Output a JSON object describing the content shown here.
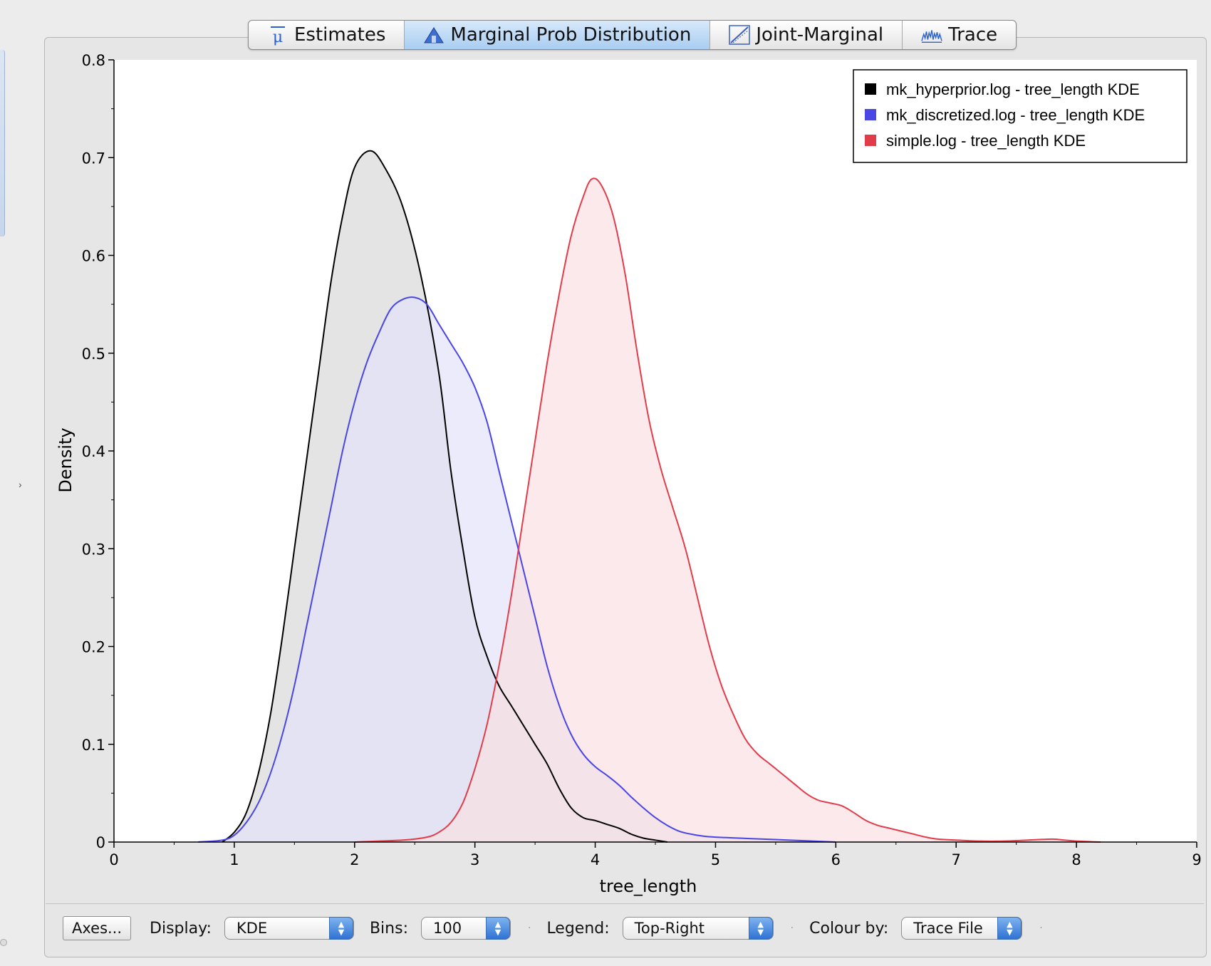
{
  "tabs": [
    {
      "label": "Estimates",
      "icon": "mu-icon",
      "active": false
    },
    {
      "label": "Marginal Prob Distribution",
      "icon": "distribution-icon",
      "active": true
    },
    {
      "label": "Joint-Marginal",
      "icon": "joint-marginal-icon",
      "active": false
    },
    {
      "label": "Trace",
      "icon": "trace-icon",
      "active": false
    }
  ],
  "controls": {
    "axes_button": "Axes...",
    "display_label": "Display:",
    "display_value": "KDE",
    "bins_label": "Bins:",
    "bins_value": "100",
    "legend_label": "Legend:",
    "legend_value": "Top-Right",
    "colour_label": "Colour by:",
    "colour_value": "Trace File"
  },
  "colors": {
    "accent": "#3c78d8",
    "series": [
      "#000000",
      "#4a46e6",
      "#e23c4a"
    ]
  },
  "chart_data": {
    "type": "area",
    "title": "",
    "xlabel": "tree_length",
    "ylabel": "Density",
    "xlim": [
      0,
      9
    ],
    "ylim": [
      0,
      0.8
    ],
    "xticks": [
      "0",
      "1",
      "2",
      "3",
      "4",
      "5",
      "6",
      "7",
      "8",
      "9"
    ],
    "yticks": [
      "0",
      "0.1",
      "0.2",
      "0.3",
      "0.4",
      "0.5",
      "0.6",
      "0.7",
      "0.8"
    ],
    "legend_position": "top-right",
    "grid": false,
    "series": [
      {
        "name": "mk_hyperprior.log - tree_length KDE",
        "color": "#000000",
        "fill": "#d9d9d9",
        "points": [
          [
            0.9,
            0.0
          ],
          [
            1.0,
            0.01
          ],
          [
            1.1,
            0.03
          ],
          [
            1.2,
            0.07
          ],
          [
            1.3,
            0.13
          ],
          [
            1.4,
            0.21
          ],
          [
            1.5,
            0.3
          ],
          [
            1.6,
            0.39
          ],
          [
            1.7,
            0.48
          ],
          [
            1.8,
            0.57
          ],
          [
            1.9,
            0.64
          ],
          [
            2.0,
            0.69
          ],
          [
            2.13,
            0.707
          ],
          [
            2.25,
            0.69
          ],
          [
            2.4,
            0.65
          ],
          [
            2.55,
            0.58
          ],
          [
            2.7,
            0.48
          ],
          [
            2.8,
            0.38
          ],
          [
            2.9,
            0.3
          ],
          [
            3.0,
            0.23
          ],
          [
            3.1,
            0.19
          ],
          [
            3.2,
            0.16
          ],
          [
            3.3,
            0.14
          ],
          [
            3.4,
            0.12
          ],
          [
            3.5,
            0.1
          ],
          [
            3.6,
            0.08
          ],
          [
            3.7,
            0.055
          ],
          [
            3.8,
            0.035
          ],
          [
            3.9,
            0.025
          ],
          [
            4.0,
            0.022
          ],
          [
            4.1,
            0.018
          ],
          [
            4.2,
            0.014
          ],
          [
            4.3,
            0.008
          ],
          [
            4.4,
            0.004
          ],
          [
            4.5,
            0.002
          ],
          [
            4.6,
            0.0
          ]
        ]
      },
      {
        "name": "mk_discretized.log - tree_length KDE",
        "color": "#4a46e6",
        "fill": "#e3e3fb",
        "points": [
          [
            0.7,
            0.0
          ],
          [
            0.9,
            0.002
          ],
          [
            1.0,
            0.007
          ],
          [
            1.1,
            0.02
          ],
          [
            1.2,
            0.04
          ],
          [
            1.3,
            0.07
          ],
          [
            1.4,
            0.11
          ],
          [
            1.5,
            0.16
          ],
          [
            1.6,
            0.22
          ],
          [
            1.7,
            0.28
          ],
          [
            1.8,
            0.34
          ],
          [
            1.9,
            0.4
          ],
          [
            2.0,
            0.45
          ],
          [
            2.1,
            0.49
          ],
          [
            2.2,
            0.52
          ],
          [
            2.3,
            0.545
          ],
          [
            2.4,
            0.555
          ],
          [
            2.5,
            0.557
          ],
          [
            2.6,
            0.55
          ],
          [
            2.7,
            0.53
          ],
          [
            2.8,
            0.51
          ],
          [
            2.9,
            0.49
          ],
          [
            3.0,
            0.465
          ],
          [
            3.1,
            0.43
          ],
          [
            3.2,
            0.38
          ],
          [
            3.3,
            0.33
          ],
          [
            3.4,
            0.28
          ],
          [
            3.5,
            0.23
          ],
          [
            3.6,
            0.18
          ],
          [
            3.7,
            0.14
          ],
          [
            3.8,
            0.11
          ],
          [
            3.9,
            0.09
          ],
          [
            4.0,
            0.077
          ],
          [
            4.1,
            0.068
          ],
          [
            4.2,
            0.058
          ],
          [
            4.3,
            0.046
          ],
          [
            4.4,
            0.035
          ],
          [
            4.5,
            0.025
          ],
          [
            4.6,
            0.017
          ],
          [
            4.7,
            0.011
          ],
          [
            4.8,
            0.008
          ],
          [
            4.9,
            0.006
          ],
          [
            5.0,
            0.005
          ],
          [
            5.2,
            0.004
          ],
          [
            5.4,
            0.003
          ],
          [
            5.6,
            0.002
          ],
          [
            5.8,
            0.001
          ],
          [
            6.0,
            0.0
          ]
        ]
      },
      {
        "name": "simple.log - tree_length KDE",
        "color": "#e23c4a",
        "fill": "#fadfe3",
        "points": [
          [
            2.0,
            0.0
          ],
          [
            2.4,
            0.002
          ],
          [
            2.6,
            0.005
          ],
          [
            2.7,
            0.01
          ],
          [
            2.8,
            0.02
          ],
          [
            2.9,
            0.04
          ],
          [
            3.0,
            0.075
          ],
          [
            3.1,
            0.12
          ],
          [
            3.2,
            0.18
          ],
          [
            3.3,
            0.25
          ],
          [
            3.4,
            0.33
          ],
          [
            3.5,
            0.41
          ],
          [
            3.6,
            0.49
          ],
          [
            3.7,
            0.56
          ],
          [
            3.8,
            0.62
          ],
          [
            3.9,
            0.66
          ],
          [
            3.97,
            0.678
          ],
          [
            4.05,
            0.672
          ],
          [
            4.15,
            0.64
          ],
          [
            4.25,
            0.58
          ],
          [
            4.35,
            0.5
          ],
          [
            4.45,
            0.43
          ],
          [
            4.55,
            0.38
          ],
          [
            4.65,
            0.34
          ],
          [
            4.75,
            0.3
          ],
          [
            4.85,
            0.25
          ],
          [
            4.95,
            0.2
          ],
          [
            5.05,
            0.16
          ],
          [
            5.15,
            0.13
          ],
          [
            5.25,
            0.105
          ],
          [
            5.35,
            0.09
          ],
          [
            5.45,
            0.08
          ],
          [
            5.55,
            0.07
          ],
          [
            5.65,
            0.06
          ],
          [
            5.75,
            0.05
          ],
          [
            5.85,
            0.043
          ],
          [
            5.95,
            0.04
          ],
          [
            6.05,
            0.037
          ],
          [
            6.15,
            0.03
          ],
          [
            6.25,
            0.022
          ],
          [
            6.35,
            0.017
          ],
          [
            6.45,
            0.014
          ],
          [
            6.55,
            0.011
          ],
          [
            6.65,
            0.008
          ],
          [
            6.75,
            0.005
          ],
          [
            6.85,
            0.003
          ],
          [
            7.0,
            0.002
          ],
          [
            7.2,
            0.001
          ],
          [
            7.4,
            0.001
          ],
          [
            7.6,
            0.002
          ],
          [
            7.8,
            0.003
          ],
          [
            7.9,
            0.002
          ],
          [
            8.0,
            0.001
          ],
          [
            8.2,
            0.0
          ]
        ]
      }
    ]
  }
}
